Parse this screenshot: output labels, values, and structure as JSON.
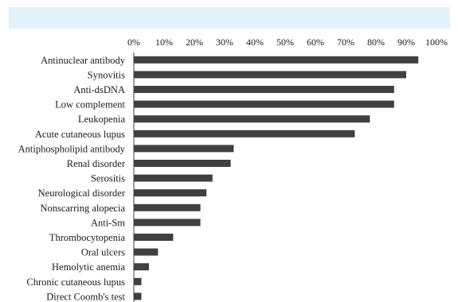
{
  "chart_data": {
    "type": "bar",
    "orientation": "horizontal",
    "categories": [
      "Antinuclear antibody",
      "Synovitis",
      "Anti-dsDNA",
      "Low complement",
      "Leukopenia",
      "Acute cutaneous lupus",
      "Antiphospholipid antibody",
      "Renal disorder",
      "Serositis",
      "Neurological disorder",
      "Nonscarring alopecia",
      "Anti-Sm",
      "Thrombocytopenia",
      "Oral ulcers",
      "Hemolytic anemia",
      "Chronic cutaneous lupus",
      "Direct Coomb's test"
    ],
    "values": [
      94,
      90,
      86,
      86,
      78,
      73,
      33,
      32,
      26,
      24,
      22,
      22,
      13,
      8,
      5,
      2.5,
      2.5
    ],
    "xlim": [
      0,
      100
    ],
    "ticks": [
      "0%",
      "10%",
      "20%",
      "30%",
      "40%",
      "50%",
      "60%",
      "70%",
      "80%",
      "90%",
      "100%"
    ],
    "axis_position": "top",
    "grid": false,
    "bar_color": "#404040",
    "title": "",
    "xlabel": "",
    "ylabel": ""
  }
}
